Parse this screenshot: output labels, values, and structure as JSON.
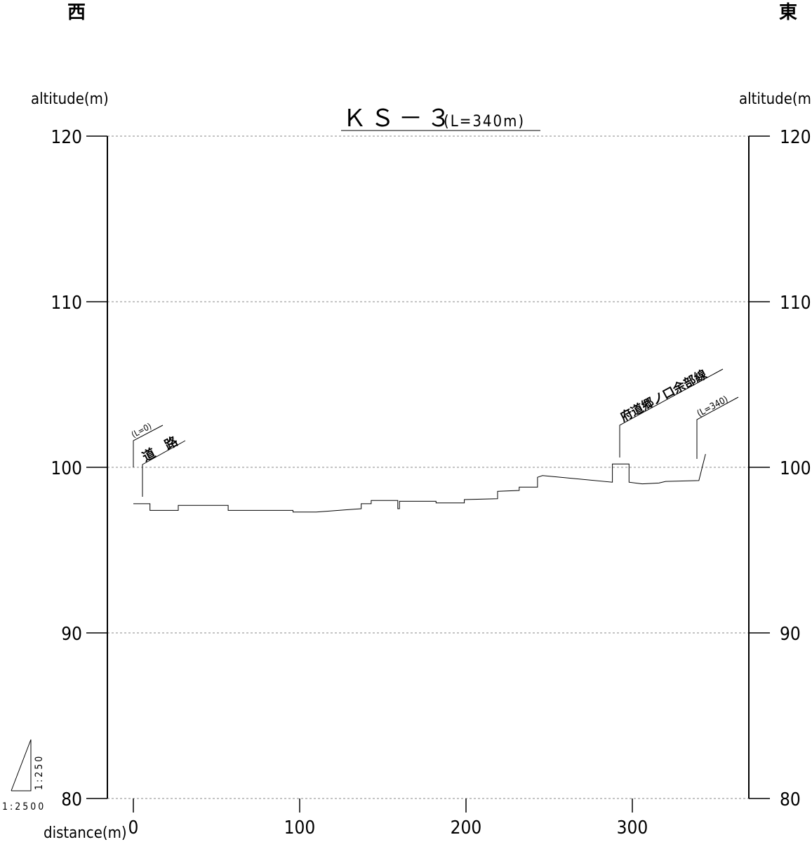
{
  "header": {
    "west": "西",
    "east": "東"
  },
  "chart_data": {
    "type": "line",
    "title_main": "ＫＳ－３",
    "title_sub": "(L=340m)",
    "ylabel_left": "altitude(m)",
    "ylabel_right": "altitude(m)",
    "xlabel": "distance(m)",
    "ylim": [
      80,
      120
    ],
    "yticks": [
      80,
      90,
      100,
      110,
      120
    ],
    "xlim": [
      -15,
      370
    ],
    "xticks": [
      0,
      100,
      200,
      300
    ],
    "grid": "dashed-horizontal",
    "series": [
      {
        "x": [
          0,
          10,
          10,
          27,
          27,
          57,
          57,
          96,
          96,
          110,
          137,
          137,
          143,
          143,
          159,
          159,
          160,
          160,
          182,
          182,
          199,
          199,
          219,
          219,
          232,
          232,
          243,
          243,
          246,
          288,
          288,
          298,
          298,
          306,
          316,
          320,
          320,
          340,
          344
        ],
        "y": [
          97.8,
          97.8,
          97.4,
          97.4,
          97.7,
          97.7,
          97.4,
          97.4,
          97.3,
          97.3,
          97.5,
          97.8,
          97.8,
          98.0,
          98.0,
          97.5,
          97.5,
          97.95,
          97.95,
          97.85,
          97.85,
          98.05,
          98.1,
          98.55,
          98.6,
          98.8,
          98.8,
          99.4,
          99.5,
          99.1,
          100.2,
          100.2,
          99.1,
          99.0,
          99.05,
          99.15,
          99.15,
          99.2,
          100.8
        ]
      }
    ],
    "annotations": [
      {
        "label": "(L=0)",
        "x": 0
      },
      {
        "label": "道　路",
        "x": 5
      },
      {
        "label": "府道郷ノ口余部線",
        "x": 293
      },
      {
        "label": "(L=340)",
        "x": 340
      }
    ],
    "scale_h": "1:2500",
    "scale_v": "1:250"
  }
}
